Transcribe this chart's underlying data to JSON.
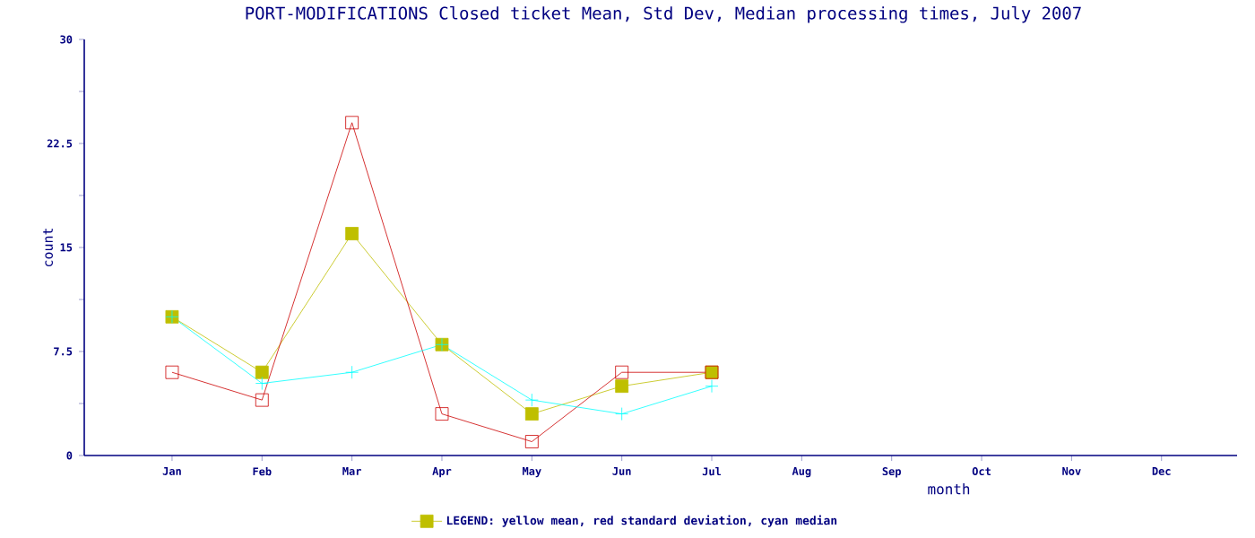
{
  "chart_data": {
    "type": "line",
    "title": "PORT-MODIFICATIONS Closed ticket Mean, Std Dev, Median processing times, July 2007",
    "xlabel": "month",
    "ylabel": "count",
    "categories": [
      "Jan",
      "Feb",
      "Mar",
      "Apr",
      "May",
      "Jun",
      "Jul",
      "Aug",
      "Sep",
      "Oct",
      "Nov",
      "Dec"
    ],
    "series": [
      {
        "name": "LEGEND: yellow mean, red standard deviation, cyan median",
        "color": "#bfbf00",
        "marker": "square",
        "values": [
          10,
          6,
          16,
          8,
          3,
          5,
          6,
          null,
          null,
          null,
          null,
          null
        ]
      },
      {
        "color": "#cc0000",
        "marker": "square_open",
        "values": [
          6,
          4,
          24,
          3,
          1,
          6,
          6,
          null,
          null,
          null,
          null,
          null
        ]
      },
      {
        "color": "#00ffff",
        "marker": "cross",
        "values": [
          10,
          5.2,
          6,
          8,
          4,
          3,
          5,
          null,
          null,
          null,
          null,
          null
        ]
      }
    ],
    "ylim": [
      0,
      30
    ],
    "yticks": [
      0,
      {
        "value": 3.75,
        "label": null
      },
      7.5,
      {
        "value": 11.25,
        "label": null
      },
      15,
      {
        "value": 18.75,
        "label": null
      },
      22.5,
      {
        "value": 26.25,
        "label": null
      },
      30
    ],
    "legend": "bottom",
    "grid": false
  }
}
